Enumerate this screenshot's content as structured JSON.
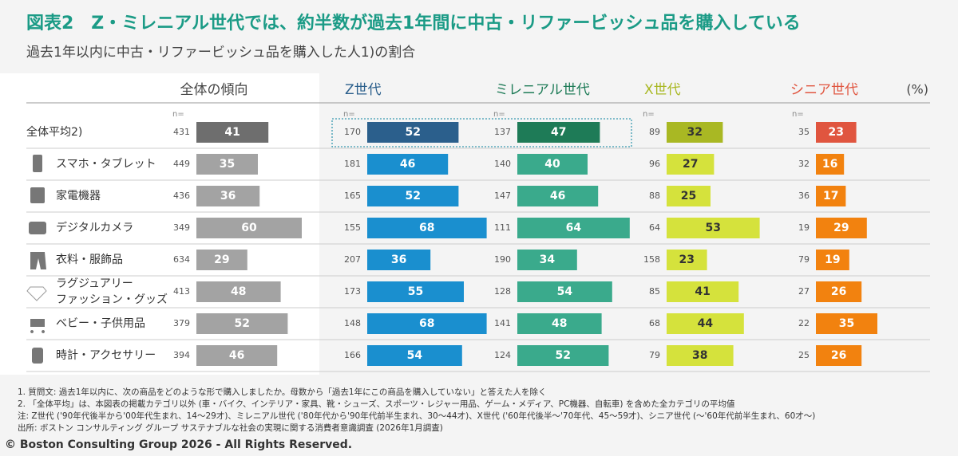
{
  "title": "図表2　Z・ミレニアル世代では、約半数が過去1年間に中古・リファービッシュ品を購入している",
  "subtitle": "過去1年以内に中古・リファービッシュ品を購入した人1)の割合",
  "chart_data": {
    "type": "bar",
    "orientation": "horizontal",
    "unit_label": "(%)",
    "n_label": "n=",
    "categories": [
      "全体平均2)",
      "スマホ・タブレット",
      "家電機器",
      "デジタルカメラ",
      "衣料・服飾品",
      "ラグジュアリー\nファッション・グッズ",
      "ベビー・子供用品",
      "時計・アクセサリー"
    ],
    "series": [
      {
        "name": "全体の傾向",
        "color": "#a3a3a3",
        "highlight_color": "#6e6e6e",
        "label_color": "#ffffff",
        "values": [
          41,
          35,
          36,
          60,
          29,
          48,
          52,
          46
        ],
        "n": [
          431,
          449,
          436,
          349,
          634,
          413,
          379,
          394
        ]
      },
      {
        "name": "Z世代",
        "color": "#1a8fcf",
        "highlight_color": "#2b5f8c",
        "label_color": "#ffffff",
        "values": [
          52,
          46,
          52,
          68,
          36,
          55,
          68,
          54
        ],
        "n": [
          170,
          181,
          165,
          155,
          207,
          173,
          148,
          166
        ]
      },
      {
        "name": "ミレニアル世代",
        "color": "#3aaa8c",
        "highlight_color": "#1e7b57",
        "label_color": "#ffffff",
        "values": [
          47,
          40,
          46,
          64,
          34,
          54,
          48,
          52
        ],
        "n": [
          137,
          140,
          147,
          111,
          190,
          128,
          141,
          124
        ]
      },
      {
        "name": "X世代",
        "color": "#d5e23c",
        "highlight_color": "#a9b823",
        "label_color": "#333333",
        "values": [
          32,
          27,
          25,
          53,
          23,
          41,
          44,
          38
        ],
        "n": [
          89,
          96,
          88,
          64,
          158,
          85,
          68,
          79
        ]
      },
      {
        "name": "シニア世代",
        "color": "#f2820f",
        "highlight_color": "#e0553f",
        "label_color": "#ffffff",
        "values": [
          23,
          16,
          17,
          29,
          19,
          26,
          35,
          26
        ],
        "n": [
          35,
          32,
          36,
          19,
          79,
          27,
          22,
          25
        ]
      }
    ],
    "footnotes": [
      "1. 質問文: 過去1年以内に、次の商品をどのような形で購入しましたか。母数から「過去1年にこの商品を購入していない」と答えた人を除く",
      "2. 「全体平均」は、本図表の掲載カテゴリ以外 (車・バイク、インテリア・家具、靴・シューズ、スポーツ・レジャー用品、ゲーム・メディア、PC機器、自転車) を含めた全カテゴリの平均値",
      "注: Z世代 ('90年代後半から'00年代生まれ、14〜29才)、ミレニアル世代 ('80年代から'90年代前半生まれ、30〜44才)、X世代 ('60年代後半〜'70年代、45〜59才)、シニア世代 (〜'60年代前半生まれ、60才〜)",
      "出所: ボストン コンサルティング グループ サステナブルな社会の実現に関する消費者意識調査 (2026年1月調査)"
    ],
    "copyright": "© Boston Consulting Group 2026 - All Rights Reserved."
  }
}
